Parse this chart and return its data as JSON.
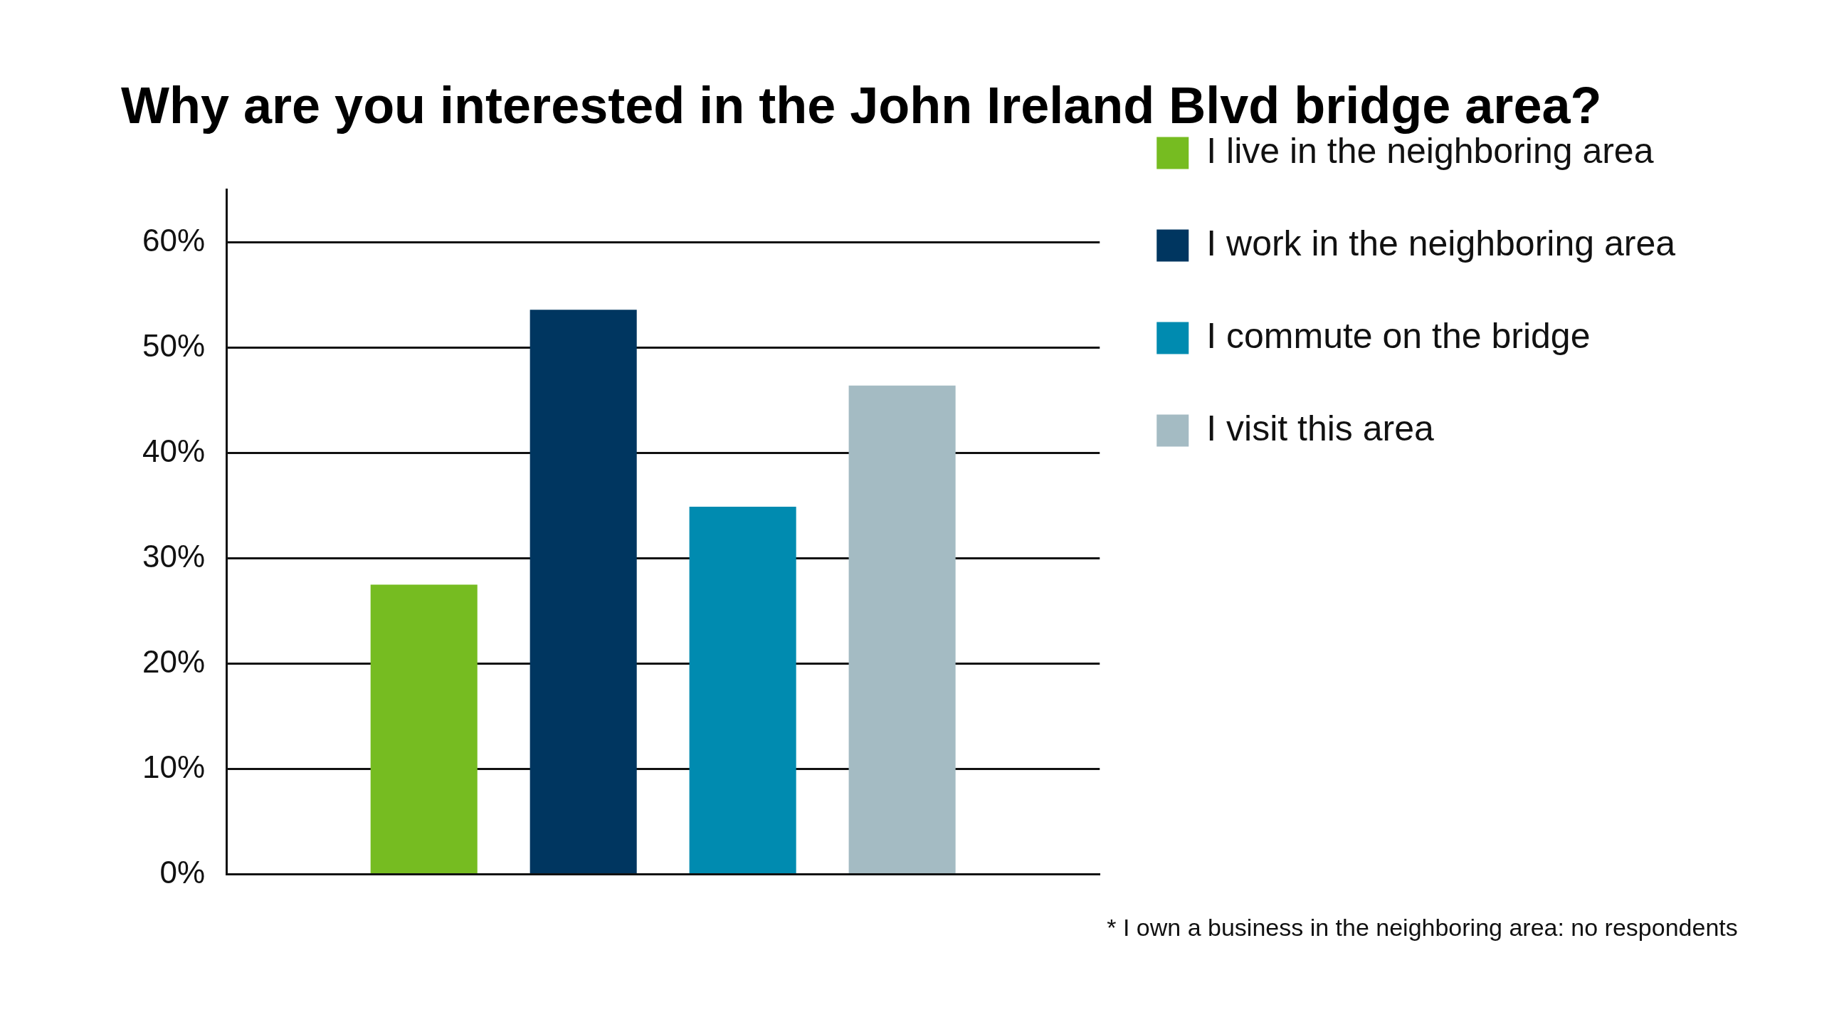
{
  "chart_data": {
    "type": "bar",
    "title": "Why are you interested in the John Ireland Blvd bridge area?",
    "categories": [
      null
    ],
    "series": [
      {
        "name": "I live in the neighboring area",
        "color": "#76bc21",
        "values": [
          27.5
        ]
      },
      {
        "name": "I work in the neighboring area",
        "color": "#003660",
        "values": [
          53.6
        ]
      },
      {
        "name": "I commute on the bridge",
        "color": "#008bb0",
        "values": [
          34.9
        ]
      },
      {
        "name": "I visit this area",
        "color": "#a4bbc3",
        "values": [
          46.4
        ]
      }
    ],
    "ylim": [
      0,
      65
    ],
    "yticks": [
      {
        "value": 0,
        "label": "0%"
      },
      {
        "value": 10,
        "label": "10%"
      },
      {
        "value": 20,
        "label": "20%"
      },
      {
        "value": 30,
        "label": "30%"
      },
      {
        "value": 40,
        "label": "40%"
      },
      {
        "value": 50,
        "label": "50%"
      },
      {
        "value": 60,
        "label": "60%"
      }
    ],
    "grid": "y",
    "legend": "right",
    "annotations": [
      "* I own a business in the neighboring area: no respondents"
    ]
  }
}
